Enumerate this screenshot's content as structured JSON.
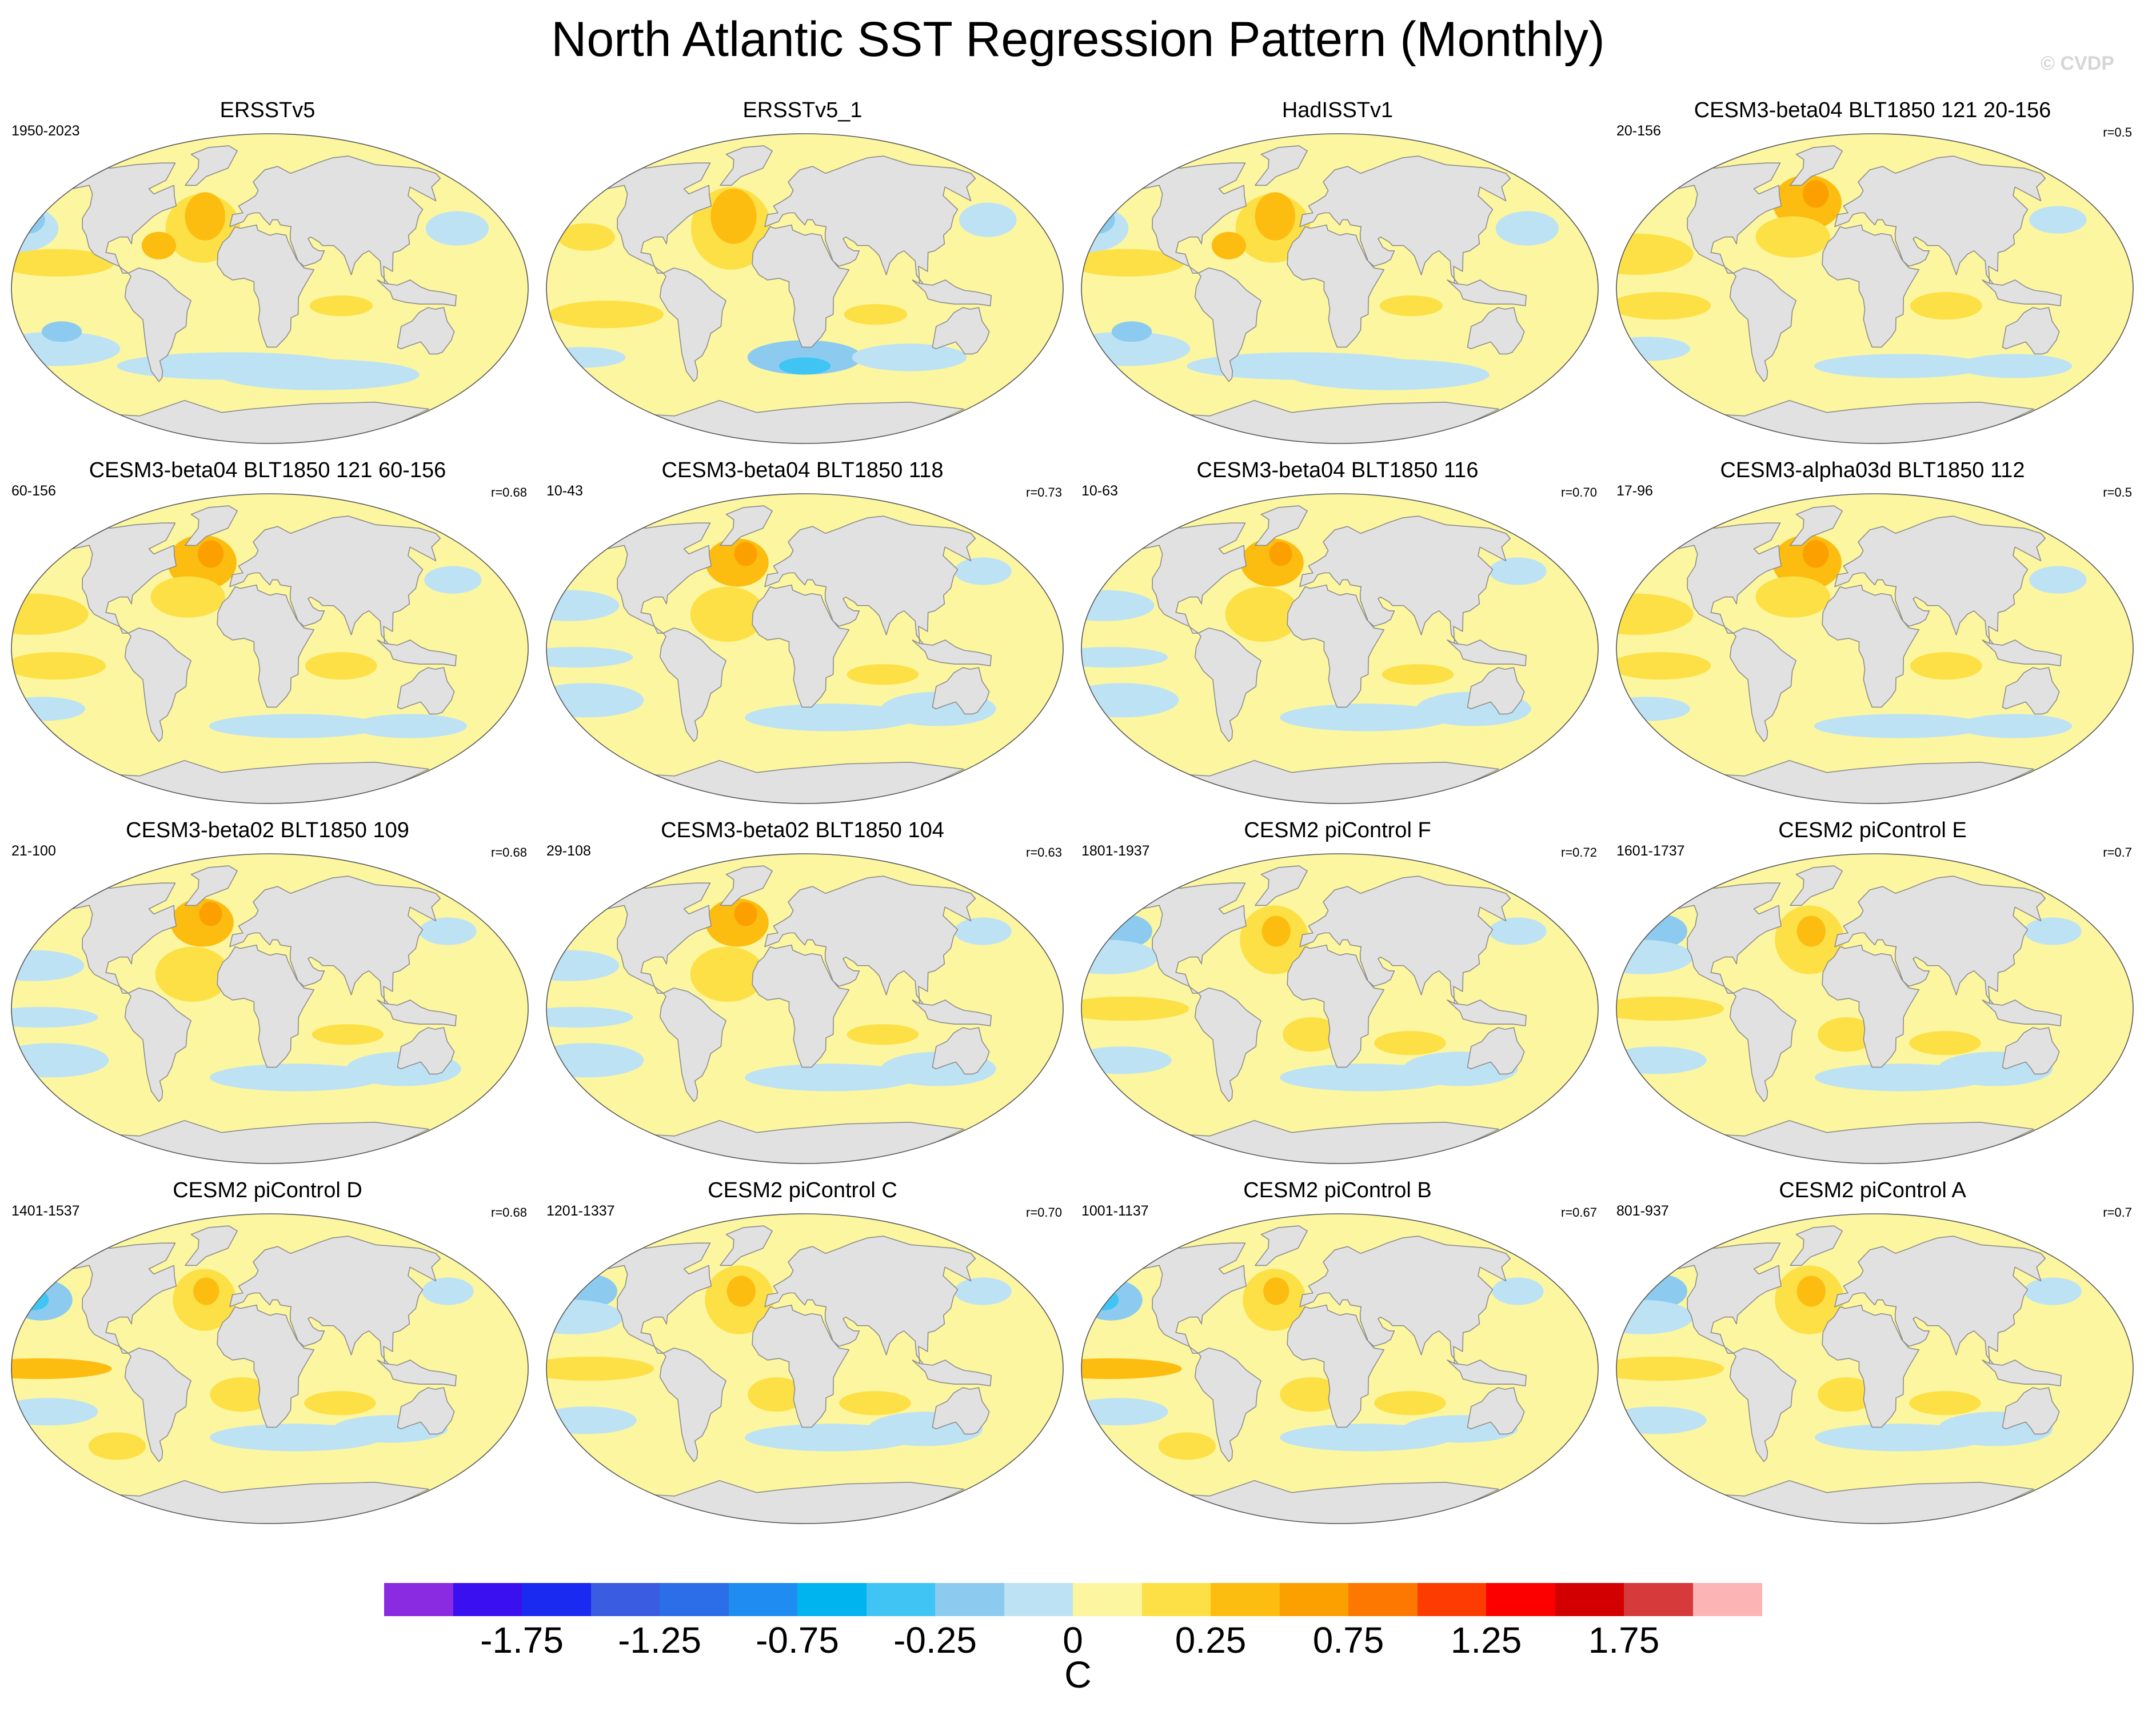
{
  "title": "North Atlantic SST Regression Pattern (Monthly)",
  "watermark": "© CVDP",
  "chart_data": {
    "type": "heatmap",
    "projection": "Robinson (global maps)",
    "panels": [
      {
        "title": "ERSSTv5",
        "years": "1950-2023",
        "r": "",
        "pattern": 0
      },
      {
        "title": "ERSSTv5_1",
        "years": "",
        "r": "",
        "pattern": 1
      },
      {
        "title": "HadISSTv1",
        "years": "",
        "r": "",
        "pattern": 0
      },
      {
        "title": "CESM3-beta04 BLT1850 121 20-156",
        "years": "20-156",
        "r": "r=0.5",
        "pattern": 2
      },
      {
        "title": "CESM3-beta04 BLT1850 121 60-156",
        "years": "60-156",
        "r": "r=0.68",
        "pattern": 2
      },
      {
        "title": "CESM3-beta04 BLT1850 118",
        "years": "10-43",
        "r": "r=0.73",
        "pattern": 3
      },
      {
        "title": "CESM3-beta04 BLT1850 116",
        "years": "10-63",
        "r": "r=0.70",
        "pattern": 3
      },
      {
        "title": "CESM3-alpha03d BLT1850 112",
        "years": "17-96",
        "r": "r=0.5",
        "pattern": 2
      },
      {
        "title": "CESM3-beta02 BLT1850 109",
        "years": "21-100",
        "r": "r=0.68",
        "pattern": 3
      },
      {
        "title": "CESM3-beta02 BLT1850 104",
        "years": "29-108",
        "r": "r=0.63",
        "pattern": 3
      },
      {
        "title": "CESM2 piControl F",
        "years": "1801-1937",
        "r": "r=0.72",
        "pattern": 4
      },
      {
        "title": "CESM2 piControl E",
        "years": "1601-1737",
        "r": "r=0.7",
        "pattern": 4
      },
      {
        "title": "CESM2 piControl D",
        "years": "1401-1537",
        "r": "r=0.68",
        "pattern": 5
      },
      {
        "title": "CESM2 piControl C",
        "years": "1201-1337",
        "r": "r=0.70",
        "pattern": 4
      },
      {
        "title": "CESM2 piControl B",
        "years": "1001-1137",
        "r": "r=0.67",
        "pattern": 5
      },
      {
        "title": "CESM2 piControl A",
        "years": "801-937",
        "r": "r=0.7",
        "pattern": 4
      }
    ],
    "colorbar": {
      "levels": [
        -2.0,
        -1.75,
        -1.5,
        -1.25,
        -1.0,
        -0.75,
        -0.5,
        -0.25,
        -0.1,
        0,
        0.1,
        0.25,
        0.5,
        0.75,
        1.0,
        1.25,
        1.5,
        1.75,
        2.0
      ],
      "colors": [
        "#8a2be2",
        "#3a10f0",
        "#1a2af0",
        "#3a5ce0",
        "#2b6ee8",
        "#1e8cf0",
        "#00b4f0",
        "#40c4f4",
        "#8ccbef",
        "#bde2f4",
        "#fcf6a0",
        "#fde046",
        "#fcbc10",
        "#fca000",
        "#fc7800",
        "#fc3c00",
        "#fc0000",
        "#d20000",
        "#d63a3a",
        "#fcb4b4"
      ],
      "tick_labels": [
        "-1.75",
        "-1.25",
        "-0.75",
        "-0.25",
        "0",
        "0.25",
        "0.75",
        "1.25",
        "1.75"
      ],
      "tick_values": [
        -1.75,
        -1.25,
        -0.75,
        -0.25,
        0,
        0.25,
        0.75,
        1.25,
        1.75
      ],
      "unit": "C"
    },
    "palette": {
      "ocean_neutral": "#fcf6a0",
      "ocean_weak_neg": "#bde2f4",
      "ocean_neg": "#8ccbef",
      "ocean_strong_neg": "#40c4f4",
      "ocean_pos": "#fde046",
      "ocean_strong_pos": "#fcbc10",
      "ocean_max_pos": "#fca000",
      "land": "#e1e1e1",
      "coast": "#8c8c8c"
    }
  }
}
